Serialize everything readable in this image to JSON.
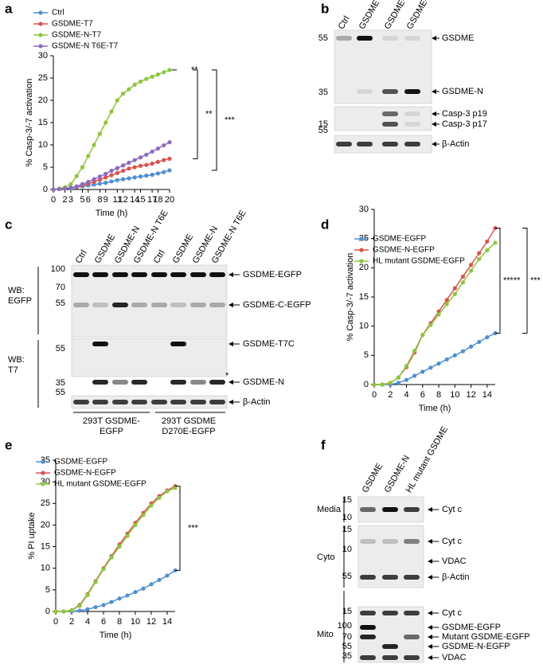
{
  "panels": [
    "a",
    "b",
    "c",
    "d",
    "e",
    "f"
  ],
  "chart_data": [
    {
      "type": "line",
      "x_label": "Time (h)",
      "y_label": "% Casp-3/-7 activation",
      "x": [
        0,
        1,
        2,
        3,
        4,
        5,
        6,
        7,
        8,
        9,
        10,
        11,
        12,
        13,
        14,
        15,
        16,
        17,
        18,
        19,
        20
      ],
      "xlim": [
        0,
        20
      ],
      "xticks": [
        0,
        2,
        3,
        5,
        6,
        8,
        9,
        11,
        12,
        14,
        15,
        17,
        18,
        20
      ],
      "ylim": [
        0,
        30
      ],
      "yticks": [
        0,
        5,
        10,
        15,
        20,
        25,
        30
      ],
      "series": [
        {
          "name": "Ctrl",
          "color": "#4f8fd1",
          "values": [
            0,
            0.1,
            0.2,
            0.3,
            0.5,
            0.7,
            0.9,
            1.1,
            1.3,
            1.5,
            1.8,
            2.1,
            2.3,
            2.5,
            2.7,
            2.9,
            3.1,
            3.3,
            3.6,
            3.9,
            4.3
          ]
        },
        {
          "name": "GSDME-T7",
          "color": "#d9534f",
          "values": [
            0,
            0.1,
            0.2,
            0.4,
            0.6,
            0.9,
            1.3,
            1.7,
            2.2,
            2.7,
            3.2,
            3.7,
            4.2,
            4.7,
            5,
            5.3,
            5.5,
            5.8,
            6.2,
            6.6,
            6.9
          ]
        },
        {
          "name": "GSDME-N-T7",
          "color": "#8dc63f",
          "values": [
            0,
            0.2,
            0.5,
            1.2,
            3,
            5,
            7.5,
            10,
            12.5,
            15,
            17.5,
            20,
            21.5,
            22.5,
            23.5,
            24.2,
            24.8,
            25.3,
            25.8,
            26.3,
            26.8
          ]
        },
        {
          "name": "GSDME-N T6E-T7",
          "color": "#8a6bbf",
          "values": [
            0,
            0.1,
            0.2,
            0.4,
            0.7,
            1.2,
            1.7,
            2.3,
            2.9,
            3.5,
            4.2,
            4.8,
            5.4,
            6,
            6.6,
            7.2,
            7.8,
            8.5,
            9.2,
            9.9,
            10.6
          ]
        }
      ],
      "annotations": [
        "**",
        "**",
        "***"
      ]
    },
    {
      "type": "line",
      "x_label": "Time (h)",
      "y_label": "% Casp-3/-7 activation",
      "x": [
        0,
        1,
        2,
        3,
        4,
        5,
        6,
        7,
        8,
        9,
        10,
        11,
        12,
        13,
        14,
        15
      ],
      "xlim": [
        0,
        15
      ],
      "xticks": [
        0,
        2,
        4,
        6,
        8,
        10,
        12,
        14
      ],
      "ylim": [
        0,
        30
      ],
      "yticks": [
        0,
        5,
        10,
        15,
        20,
        25,
        30
      ],
      "series": [
        {
          "name": "GSDME-EGFP",
          "color": "#4f8fd1",
          "values": [
            0,
            0,
            0,
            0.3,
            0.8,
            1.5,
            2.2,
            2.9,
            3.6,
            4.3,
            5,
            5.7,
            6.5,
            7.3,
            8.1,
            8.8
          ]
        },
        {
          "name": "GSDME-N-EGFP",
          "color": "#d9534f",
          "values": [
            0,
            0,
            0.3,
            1.2,
            3,
            5.5,
            8.5,
            10.5,
            12.5,
            14.5,
            16.5,
            18.5,
            20.5,
            22.5,
            24.5,
            26.8
          ]
        },
        {
          "name": "HL mutant GSDME-EGFP",
          "color": "#8dc63f",
          "values": [
            0,
            0,
            0.3,
            1.2,
            3.2,
            5.8,
            8.5,
            10.2,
            12,
            13.8,
            15.5,
            17.5,
            19.5,
            21.5,
            23,
            24.3
          ]
        }
      ],
      "annotations": [
        "*****",
        "***"
      ]
    },
    {
      "type": "line",
      "x_label": "Time (h)",
      "y_label": "% PI uptake",
      "x": [
        0,
        1,
        2,
        3,
        4,
        5,
        6,
        7,
        8,
        9,
        10,
        11,
        12,
        13,
        14,
        15
      ],
      "xlim": [
        0,
        15
      ],
      "xticks": [
        0,
        2,
        4,
        6,
        8,
        10,
        12,
        14
      ],
      "ylim": [
        0,
        35
      ],
      "yticks": [
        0,
        5,
        10,
        15,
        20,
        25,
        30,
        35
      ],
      "series": [
        {
          "name": "GSDME-EGFP",
          "color": "#4f8fd1",
          "values": [
            0,
            0,
            0,
            0.2,
            0.5,
            1,
            1.5,
            2.2,
            3,
            3.7,
            4.5,
            5.3,
            6.3,
            7.3,
            8.3,
            9.5
          ]
        },
        {
          "name": "GSDME-N-EGFP",
          "color": "#d9534f",
          "values": [
            0,
            0,
            0.3,
            1.5,
            4,
            7,
            10,
            12.8,
            15.5,
            18,
            20.5,
            22.8,
            25,
            26.7,
            28,
            29
          ]
        },
        {
          "name": "HL mutant GSDME-EGFP",
          "color": "#8dc63f",
          "values": [
            0,
            0,
            0.3,
            1.3,
            3.8,
            6.8,
            9.8,
            12.5,
            15,
            17.5,
            20,
            22.3,
            24.5,
            26.3,
            27.8,
            28.6
          ]
        }
      ],
      "annotations": [
        "***"
      ]
    }
  ],
  "blots": [
    {
      "lanes": [
        "Ctrl",
        "GSDME",
        "GSDME-N",
        "GSDME-N T6E"
      ],
      "markers": [
        "55",
        "35",
        "15",
        "55"
      ],
      "bands": [
        "GSDME",
        "GSDME-N",
        "Casp-3 p19",
        "Casp-3 p17",
        "β-Actin"
      ]
    },
    {
      "lanes": [
        "Ctrl",
        "GSDME",
        "GSDME-N",
        "GSDME-N T6E",
        "Ctrl",
        "GSDME",
        "GSDME-N",
        "GSDME-N T6E"
      ],
      "markers": [
        "100",
        "70",
        "55",
        "55",
        "35",
        "55"
      ],
      "bands": [
        "GSDME-EGFP",
        "GSDME-C-EGFP",
        "GSDME-T7C",
        "GSDME-N",
        "β-Actin"
      ],
      "antibodies": [
        [
          "WB:",
          "EGFP"
        ],
        [
          "WB:",
          "T7"
        ]
      ],
      "groups": [
        [
          "293T GSDME-",
          "EGFP"
        ],
        [
          "293T GSDME",
          "D270E-EGFP"
        ]
      ],
      "note": "*"
    },
    {
      "lanes": [
        "GSDME",
        "GSDME-N",
        "HL mutant GSDME"
      ],
      "markers": [
        "15",
        "10",
        "15",
        "10",
        "55",
        "15",
        "100",
        "70",
        "55",
        "35"
      ],
      "bands": [
        "Cyt c",
        "Cyt c",
        "VDAC",
        "β-Actin",
        "Cyt c",
        "GSDME-EGFP",
        "Mutant GSDME-EGFP",
        "GSDME-N-EGFP",
        "VDAC"
      ],
      "fractions": [
        "Media",
        "Cyto",
        "Mito"
      ]
    }
  ]
}
